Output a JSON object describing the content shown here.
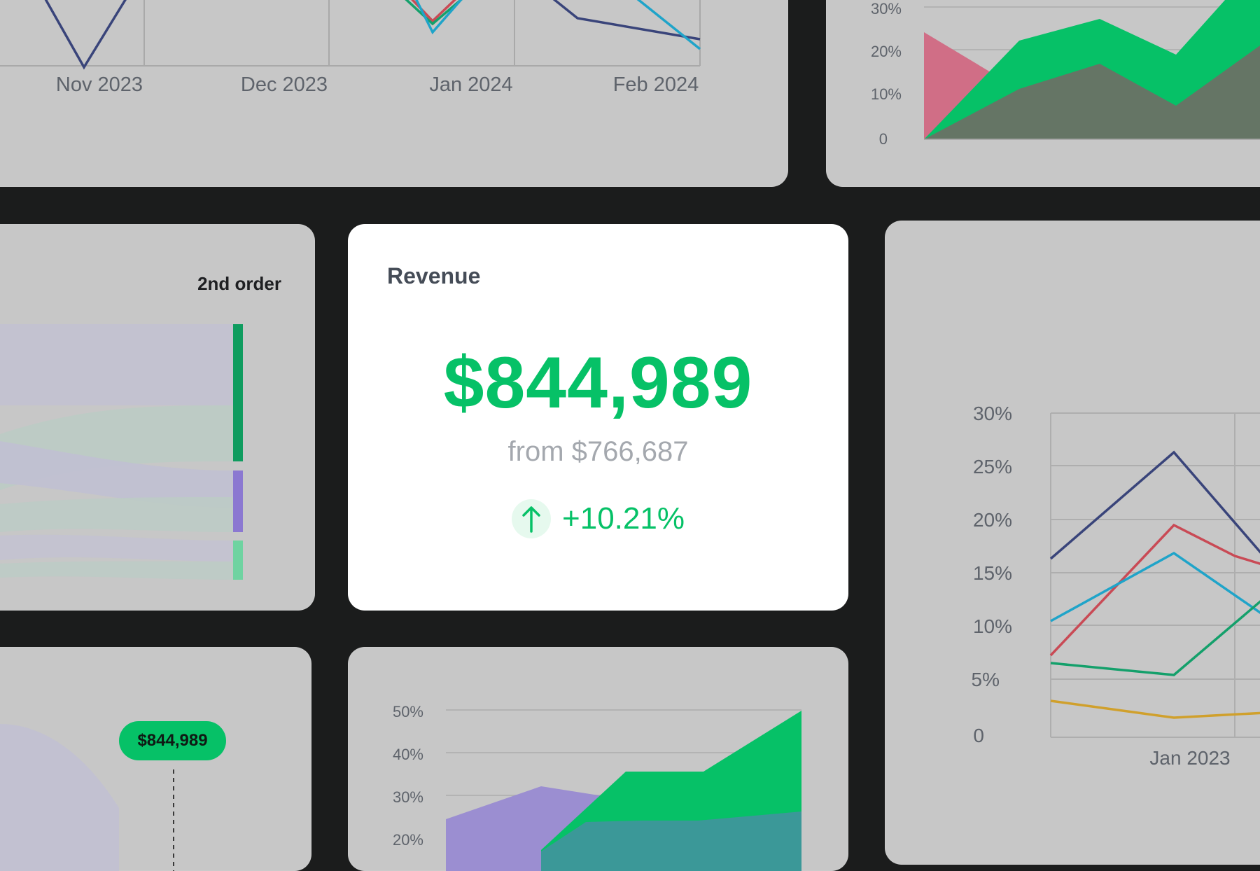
{
  "revenue_card": {
    "title": "Revenue",
    "value": "$844,989",
    "from": "from $766,687",
    "change": "+10.21%",
    "arrow_icon": "arrow-up-icon",
    "accent": "#06c167"
  },
  "top_left_chart": {
    "x_ticks": [
      "Nov 2023",
      "Dec 2023",
      "Jan 2024",
      "Feb 2024"
    ],
    "series_colors": [
      "#39447a",
      "#c94a55",
      "#14a06b",
      "#1fa4c9"
    ]
  },
  "top_right_chart": {
    "y_ticks": [
      "30%",
      "20%",
      "10%",
      "0"
    ],
    "colors": [
      "#d06e86",
      "#06c167",
      "#657565"
    ]
  },
  "sankey_card": {
    "label": "2nd order",
    "bar_colors": [
      "#0f9c5f",
      "#8b78d1",
      "#6fd3a1"
    ]
  },
  "right_chart": {
    "y_ticks": [
      "30%",
      "25%",
      "20%",
      "15%",
      "10%",
      "5%",
      "0"
    ],
    "x_ticks": [
      "Jan 2023"
    ],
    "series_colors": [
      "#39447a",
      "#c94a55",
      "#1fa4c9",
      "#14a06b",
      "#d0a02c"
    ]
  },
  "bottom_left_card": {
    "tooltip": "$844,989"
  },
  "bottom_center_chart": {
    "y_ticks": [
      "50%",
      "40%",
      "30%",
      "20%"
    ],
    "colors": [
      "#9b8ed1",
      "#06c167",
      "#3b9898"
    ]
  }
}
